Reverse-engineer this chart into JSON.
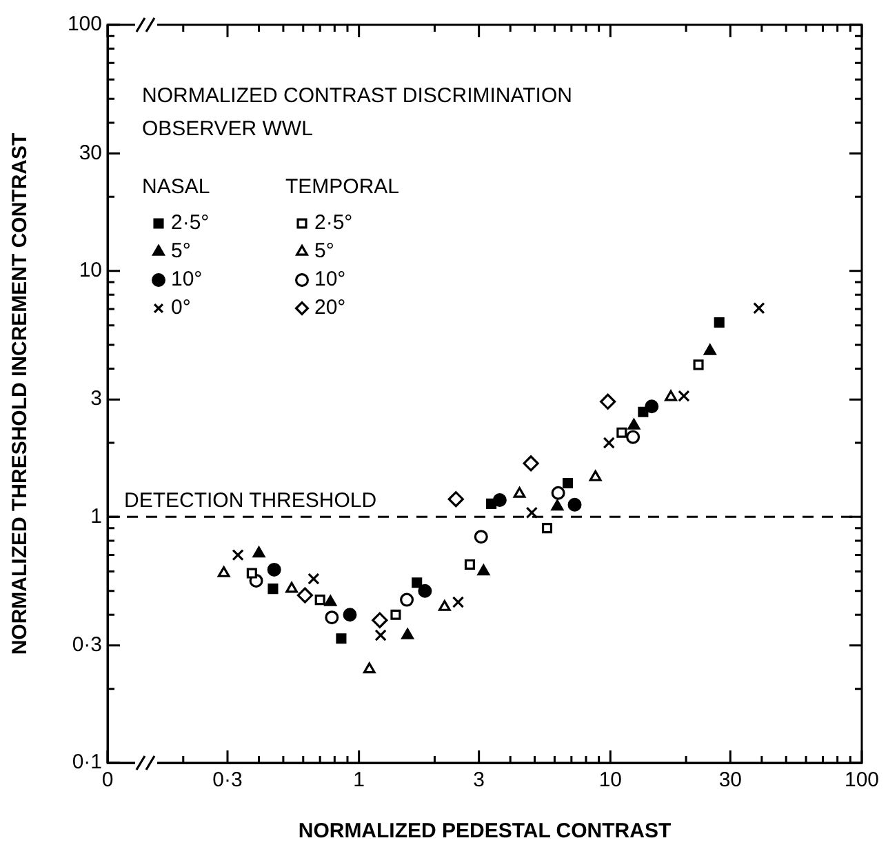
{
  "chart_data": {
    "type": "scatter",
    "title": "NORMALIZED CONTRAST DISCRIMINATION",
    "subtitle": "OBSERVER WWL",
    "xlabel": "NORMALIZED PEDESTAL CONTRAST",
    "ylabel": "NORMALIZED THRESHOLD INCREMENT CONTRAST",
    "annotations": [
      "NASAL",
      "TEMPORAL"
    ],
    "log": "xy",
    "xlim": [
      0.1,
      100
    ],
    "ylim": [
      0.1,
      100
    ],
    "xticks": [
      {
        "value": 0.1,
        "label": "0"
      },
      {
        "value": 0.2,
        "label": null
      },
      {
        "value": 0.3,
        "label": "0·3"
      },
      {
        "value": 0.4,
        "label": null
      },
      {
        "value": 0.5,
        "label": null
      },
      {
        "value": 0.6,
        "label": null
      },
      {
        "value": 0.7,
        "label": null
      },
      {
        "value": 0.8,
        "label": null
      },
      {
        "value": 0.9,
        "label": null
      },
      1,
      {
        "value": 2,
        "label": null
      },
      3,
      {
        "value": 4,
        "label": null
      },
      {
        "value": 5,
        "label": null
      },
      {
        "value": 6,
        "label": null
      },
      {
        "value": 7,
        "label": null
      },
      {
        "value": 8,
        "label": null
      },
      {
        "value": 9,
        "label": null
      },
      10,
      {
        "value": 20,
        "label": null
      },
      30,
      {
        "value": 40,
        "label": null
      },
      {
        "value": 50,
        "label": null
      },
      {
        "value": 60,
        "label": null
      },
      {
        "value": 70,
        "label": null
      },
      {
        "value": 80,
        "label": null
      },
      {
        "value": 90,
        "label": null
      },
      100
    ],
    "yticks": [
      {
        "value": 0.1,
        "label": "0·1"
      },
      {
        "value": 0.2,
        "label": null
      },
      {
        "value": 0.3,
        "label": "0·3"
      },
      {
        "value": 0.4,
        "label": null
      },
      {
        "value": 0.5,
        "label": null
      },
      {
        "value": 0.6,
        "label": null
      },
      {
        "value": 0.7,
        "label": null
      },
      {
        "value": 0.8,
        "label": null
      },
      {
        "value": 0.9,
        "label": null
      },
      1,
      {
        "value": 2,
        "label": null
      },
      3,
      {
        "value": 4,
        "label": null
      },
      {
        "value": 5,
        "label": null
      },
      {
        "value": 6,
        "label": null
      },
      {
        "value": 7,
        "label": null
      },
      {
        "value": 8,
        "label": null
      },
      {
        "value": 9,
        "label": null
      },
      10,
      {
        "value": 20,
        "label": null
      },
      30,
      {
        "value": 40,
        "label": null
      },
      {
        "value": 50,
        "label": null
      },
      {
        "value": 60,
        "label": null
      },
      {
        "value": 70,
        "label": null
      },
      {
        "value": 80,
        "label": null
      },
      {
        "value": 90,
        "label": null
      },
      100
    ],
    "ref_lines": [
      {
        "axis": "y",
        "value": 1,
        "label": "DETECTION THRESHOLD",
        "line_style": "dashed",
        "color": "#000000"
      }
    ],
    "legend": "top left",
    "series": [
      {
        "name": "2·5°",
        "color": "#000000",
        "marker": "square",
        "x": [
          0.455,
          0.85,
          1.7,
          3.36,
          6.77,
          13.5,
          27.1
        ],
        "values": [
          0.51,
          0.32,
          0.54,
          1.13,
          1.37,
          2.67,
          6.17
        ]
      },
      {
        "name": "5°",
        "color": "#000000",
        "marker": "triangle",
        "x": [
          0.4,
          0.77,
          1.56,
          3.13,
          6.15,
          12.4,
          24.9
        ],
        "values": [
          0.71,
          0.45,
          0.33,
          0.6,
          1.1,
          2.35,
          4.72
        ]
      },
      {
        "name": "10°",
        "color": "#000000",
        "marker": "circle",
        "x": [
          0.46,
          0.92,
          1.83,
          3.63,
          7.21,
          14.6
        ],
        "values": [
          0.61,
          0.4,
          0.5,
          1.17,
          1.12,
          2.81
        ]
      },
      {
        "name": "0°",
        "color": "#000000",
        "marker": "cross",
        "x": [
          0.33,
          0.66,
          1.22,
          2.48,
          4.87,
          9.87,
          19.6,
          39
        ],
        "values": [
          0.7,
          0.56,
          0.33,
          0.45,
          1.04,
          2.0,
          3.1,
          7.05
        ]
      },
      {
        "name": "2·5°",
        "color": "#000000",
        "marker": "square",
        "x": [
          0.375,
          0.7,
          1.4,
          2.76,
          5.6,
          11.1,
          22.4
        ],
        "values": [
          0.59,
          0.46,
          0.4,
          0.64,
          0.9,
          2.2,
          4.15
        ]
      },
      {
        "name": "5°",
        "color": "#000000",
        "marker": "triangle",
        "x": [
          0.29,
          0.54,
          1.1,
          2.19,
          4.35,
          8.72,
          17.4
        ],
        "values": [
          0.59,
          0.51,
          0.24,
          0.43,
          1.24,
          1.45,
          3.07
        ]
      },
      {
        "name": "10°",
        "color": "#000000",
        "marker": "circle",
        "x": [
          0.39,
          0.78,
          1.55,
          3.06,
          6.2,
          12.3
        ],
        "values": [
          0.55,
          0.39,
          0.46,
          0.83,
          1.25,
          2.11
        ]
      },
      {
        "name": "20°",
        "color": "#000000",
        "marker": "diamond",
        "x": [
          0.61,
          1.21,
          2.43,
          4.83,
          9.77
        ],
        "values": [
          0.48,
          0.38,
          1.18,
          1.65,
          2.94
        ]
      }
    ]
  }
}
